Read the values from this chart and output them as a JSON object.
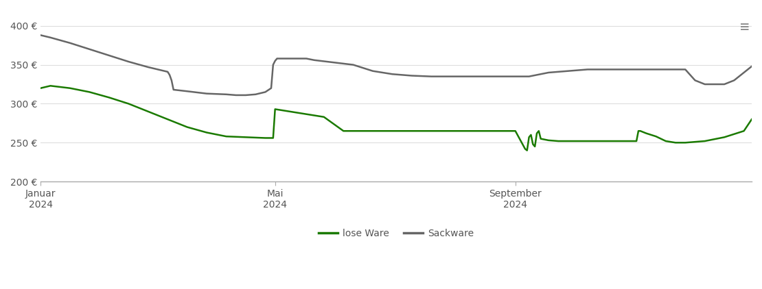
{
  "background_color": "#ffffff",
  "grid_color": "#dddddd",
  "axis_color": "#aaaaaa",
  "tick_color": "#555555",
  "legend_labels": [
    "lose Ware",
    "Sackware"
  ],
  "legend_colors": [
    "#1a7a00",
    "#666666"
  ],
  "ylim": [
    200,
    420
  ],
  "yticks": [
    200,
    250,
    300,
    350,
    400
  ],
  "ytick_labels": [
    "200 €",
    "250 €",
    "300 €",
    "350 €",
    "400 €"
  ],
  "xtick_labels": [
    "Januar\n2024",
    "Mai\n2024",
    "September\n2024"
  ],
  "lose_ware_x": [
    0,
    5,
    15,
    25,
    35,
    45,
    55,
    65,
    75,
    85,
    95,
    105,
    115,
    118,
    119,
    120,
    125,
    135,
    145,
    155,
    158,
    160,
    165,
    175,
    185,
    195,
    205,
    215,
    225,
    235,
    243,
    248,
    249,
    250,
    251,
    252,
    253,
    254,
    255,
    256,
    260,
    265,
    270,
    275,
    280,
    285,
    290,
    295,
    300,
    305,
    306,
    307,
    310,
    315,
    320,
    325,
    330,
    340,
    350,
    360,
    364
  ],
  "lose_ware_y": [
    320,
    323,
    320,
    315,
    308,
    300,
    290,
    280,
    270,
    263,
    258,
    257,
    256,
    256,
    256,
    293,
    291,
    287,
    283,
    265,
    265,
    265,
    265,
    265,
    265,
    265,
    265,
    265,
    265,
    265,
    265,
    242,
    240,
    257,
    260,
    248,
    245,
    262,
    265,
    255,
    253,
    252,
    252,
    252,
    252,
    252,
    252,
    252,
    252,
    252,
    265,
    265,
    262,
    258,
    252,
    250,
    250,
    252,
    257,
    265,
    280
  ],
  "sackware_x": [
    0,
    5,
    15,
    25,
    35,
    45,
    55,
    65,
    66,
    67,
    68,
    75,
    85,
    95,
    100,
    105,
    110,
    115,
    118,
    119,
    120,
    121,
    125,
    130,
    135,
    136,
    140,
    150,
    160,
    170,
    180,
    190,
    200,
    210,
    220,
    230,
    240,
    243,
    250,
    260,
    270,
    275,
    280,
    285,
    290,
    295,
    300,
    305,
    310,
    315,
    320,
    325,
    330,
    335,
    340,
    345,
    350,
    355,
    360,
    364
  ],
  "sackware_y": [
    388,
    385,
    378,
    370,
    362,
    354,
    347,
    341,
    337,
    330,
    318,
    316,
    313,
    312,
    311,
    311,
    312,
    315,
    320,
    350,
    355,
    358,
    358,
    358,
    358,
    358,
    356,
    353,
    350,
    342,
    338,
    336,
    335,
    335,
    335,
    335,
    335,
    335,
    335,
    340,
    342,
    343,
    344,
    344,
    344,
    344,
    344,
    344,
    344,
    344,
    344,
    344,
    344,
    330,
    325,
    325,
    325,
    330,
    340,
    348
  ]
}
